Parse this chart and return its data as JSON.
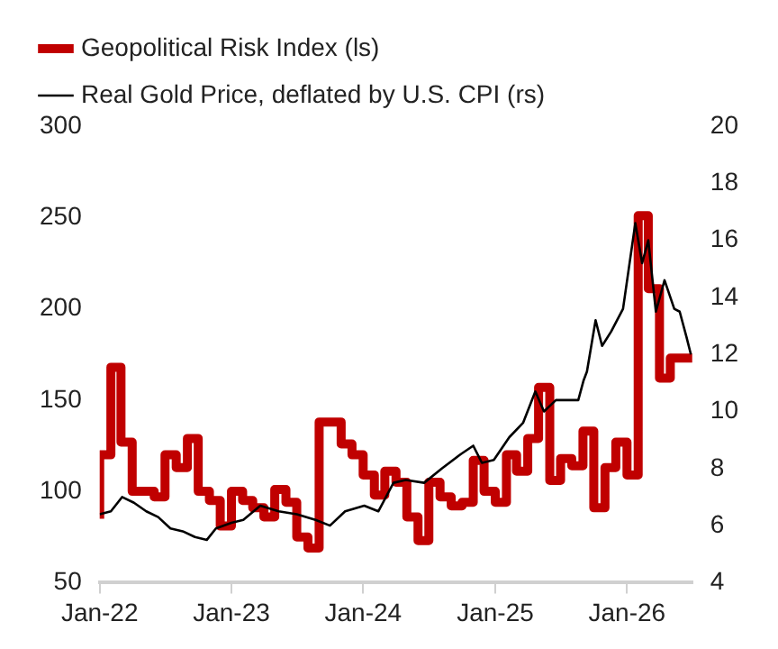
{
  "chart_data": {
    "type": "line",
    "xlim": [
      "2022-01",
      "2026-07"
    ],
    "xticks": [
      {
        "value": "2022-01",
        "label": "Jan-22"
      },
      {
        "value": "2023-01",
        "label": "Jan-23"
      },
      {
        "value": "2024-01",
        "label": "Jan-24"
      },
      {
        "value": "2025-01",
        "label": "Jan-25"
      },
      {
        "value": "2026-01",
        "label": "Jan-26"
      }
    ],
    "ylim": [
      50,
      300
    ],
    "yticks": [
      50,
      100,
      150,
      200,
      250,
      300
    ],
    "y2lim": [
      4,
      20
    ],
    "y2ticks": [
      4,
      6,
      8,
      10,
      12,
      14,
      16,
      18,
      20
    ],
    "grid": false,
    "legend": "top left",
    "marker": "none",
    "series": [
      {
        "name": "Geopolitical Risk Index (ls)",
        "type": "step",
        "color": "#c00000",
        "x": [
          "2022-01",
          "2022-02",
          "2022-03",
          "2022-04",
          "2022-05",
          "2022-06",
          "2022-07",
          "2022-08",
          "2022-09",
          "2022-10",
          "2022-11",
          "2022-12",
          "2023-01",
          "2023-02",
          "2023-03",
          "2023-04",
          "2023-05",
          "2023-06",
          "2023-07",
          "2023-08",
          "2023-09",
          "2023-10",
          "2023-11",
          "2023-12",
          "2024-01",
          "2024-02",
          "2024-03",
          "2024-04",
          "2024-05",
          "2024-06",
          "2024-07",
          "2024-08",
          "2024-09",
          "2024-10",
          "2024-11",
          "2024-12",
          "2025-01",
          "2025-02",
          "2025-03",
          "2025-04",
          "2025-05",
          "2025-06",
          "2025-07",
          "2025-08",
          "2025-09",
          "2025-10",
          "2025-11",
          "2025-12",
          "2026-01",
          "2026-02",
          "2026-03",
          "2026-04",
          "2026-05",
          "2026-06",
          "2026-07"
        ],
        "values": [
          85,
          120,
          168,
          127,
          100,
          100,
          97,
          120,
          113,
          129,
          100,
          95,
          81,
          100,
          95,
          91,
          86,
          101,
          94,
          75,
          69,
          138,
          138,
          126,
          120,
          109,
          98,
          111,
          105,
          86,
          73,
          105,
          97,
          92,
          94,
          117,
          100,
          94,
          120,
          111,
          129,
          157,
          106,
          118,
          114,
          133,
          91,
          113,
          127,
          109,
          251,
          211,
          162,
          173,
          173
        ]
      },
      {
        "name": "Real Gold Price, deflated by U.S. CPI (rs)",
        "type": "line",
        "axis": "y2",
        "color": "#000000",
        "x": [
          "2022-01-01",
          "2022-02-01",
          "2022-03-04",
          "2022-04-06",
          "2022-05-10",
          "2022-06-12",
          "2022-07-16",
          "2022-08-19",
          "2022-09-22",
          "2022-10-25",
          "2022-11-19",
          "2023-01-01",
          "2023-02-03",
          "2023-03-22",
          "2023-05-12",
          "2023-07-01",
          "2023-08-22",
          "2023-10-01",
          "2023-11-12",
          "2024-01-04",
          "2024-02-12",
          "2024-03-25",
          "2024-04-28",
          "2024-06-18",
          "2024-08-06",
          "2024-09-27",
          "2024-11-01",
          "2024-11-25",
          "2024-12-28",
          "2025-02-09",
          "2025-03-19",
          "2025-04-22",
          "2025-05-16",
          "2025-06-18",
          "2025-08-19",
          "2025-09-03",
          "2025-09-12",
          "2025-10-06",
          "2025-10-24",
          "2025-11-18",
          "2025-12-21",
          "2026-01-24",
          "2026-02-12",
          "2026-03-01",
          "2026-03-22",
          "2026-04-15",
          "2026-05-12",
          "2026-05-27",
          "2026-06-15",
          "2026-06-27"
        ],
        "values": [
          6.4,
          6.5,
          7.0,
          6.8,
          6.5,
          6.3,
          5.9,
          5.8,
          5.6,
          5.5,
          5.9,
          6.1,
          6.2,
          6.7,
          6.5,
          6.4,
          6.2,
          6.0,
          6.5,
          6.7,
          6.5,
          7.5,
          7.6,
          7.5,
          8.0,
          8.5,
          8.8,
          8.2,
          8.3,
          9.1,
          9.6,
          10.7,
          10.0,
          10.4,
          10.4,
          11.1,
          11.4,
          13.2,
          12.3,
          12.8,
          13.6,
          16.6,
          15.2,
          16.0,
          13.5,
          14.6,
          13.6,
          13.5,
          12.6,
          12.0
        ]
      }
    ]
  }
}
